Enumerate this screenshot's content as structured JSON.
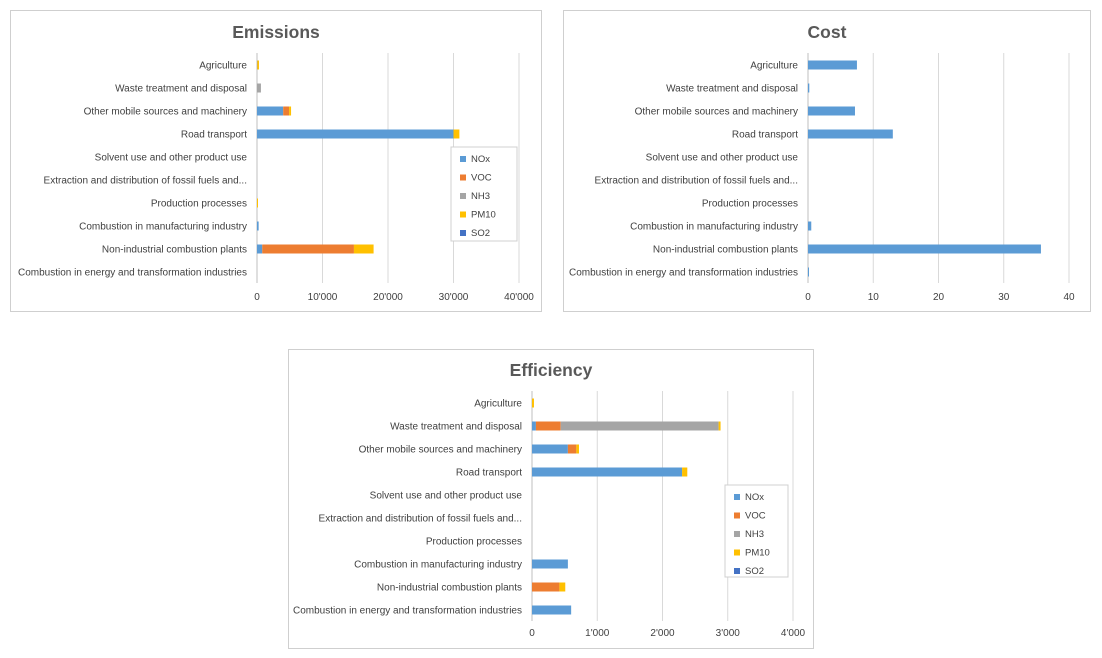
{
  "colors": {
    "NOx": "#5b9bd5",
    "VOC": "#ed7d31",
    "NH3": "#a5a5a5",
    "PM10": "#ffc000",
    "SO2": "#4472c4"
  },
  "chart_data": [
    {
      "type": "bar",
      "orientation": "horizontal",
      "stacked": true,
      "title": "Emissions",
      "categories": [
        "Agriculture",
        "Waste treatment and disposal",
        "Other mobile sources and machinery",
        "Road transport",
        "Solvent use and other product use",
        "Extraction and distribution of fossil fuels and...",
        "Production processes",
        "Combustion in manufacturing industry",
        "Non-industrial combustion plants",
        "Combustion in energy and transformation industries"
      ],
      "xlim": [
        0,
        40000
      ],
      "xticks": [
        0,
        10000,
        20000,
        30000,
        40000
      ],
      "xtick_labels": [
        "0",
        "10'000",
        "20'000",
        "30'000",
        "40'000"
      ],
      "grid": true,
      "legend_position": "right",
      "series": [
        {
          "name": "NOx",
          "values": [
            0,
            0,
            4000,
            30000,
            0,
            0,
            0,
            250,
            800,
            0
          ]
        },
        {
          "name": "VOC",
          "values": [
            0,
            0,
            900,
            0,
            0,
            0,
            0,
            0,
            14000,
            0
          ]
        },
        {
          "name": "NH3",
          "values": [
            50,
            600,
            0,
            0,
            0,
            0,
            0,
            0,
            0,
            0
          ]
        },
        {
          "name": "PM10",
          "values": [
            250,
            0,
            300,
            900,
            0,
            0,
            150,
            0,
            3000,
            0
          ]
        },
        {
          "name": "SO2",
          "values": [
            0,
            0,
            0,
            0,
            0,
            0,
            0,
            0,
            0,
            0
          ]
        }
      ]
    },
    {
      "type": "bar",
      "orientation": "horizontal",
      "stacked": true,
      "title": "Cost",
      "categories": [
        "Agriculture",
        "Waste treatment and disposal",
        "Other mobile sources and machinery",
        "Road transport",
        "Solvent use and other product use",
        "Extraction and distribution of fossil fuels and...",
        "Production processes",
        "Combustion in manufacturing industry",
        "Non-industrial combustion plants",
        "Combustion in energy and transformation industries"
      ],
      "xlim": [
        0,
        40
      ],
      "xticks": [
        0,
        10,
        20,
        30,
        40
      ],
      "xtick_labels": [
        "0",
        "10",
        "20",
        "30",
        "40"
      ],
      "grid": true,
      "legend_position": "none",
      "series": [
        {
          "name": "NOx",
          "values": [
            7.5,
            0.2,
            7.2,
            13,
            0,
            0,
            0,
            0.5,
            35.7,
            0.1
          ]
        }
      ]
    },
    {
      "type": "bar",
      "orientation": "horizontal",
      "stacked": true,
      "title": "Efficiency",
      "categories": [
        "Agriculture",
        "Waste treatment and disposal",
        "Other mobile sources and machinery",
        "Road transport",
        "Solvent use and other product use",
        "Extraction and distribution of fossil fuels and...",
        "Production processes",
        "Combustion in manufacturing industry",
        "Non-industrial combustion plants",
        "Combustion in energy and transformation industries"
      ],
      "xlim": [
        0,
        4000
      ],
      "xticks": [
        0,
        1000,
        2000,
        3000,
        4000
      ],
      "xtick_labels": [
        "0",
        "1'000",
        "2'000",
        "3'000",
        "4'000"
      ],
      "grid": true,
      "legend_position": "right",
      "series": [
        {
          "name": "NOx",
          "values": [
            0,
            60,
            550,
            2300,
            0,
            0,
            0,
            550,
            0,
            600
          ]
        },
        {
          "name": "VOC",
          "values": [
            0,
            380,
            130,
            0,
            0,
            0,
            0,
            0,
            420,
            0
          ]
        },
        {
          "name": "NH3",
          "values": [
            0,
            2420,
            0,
            0,
            0,
            0,
            0,
            0,
            0,
            0
          ]
        },
        {
          "name": "PM10",
          "values": [
            30,
            30,
            40,
            80,
            0,
            0,
            0,
            0,
            90,
            0
          ]
        },
        {
          "name": "SO2",
          "values": [
            0,
            0,
            0,
            0,
            0,
            0,
            0,
            0,
            0,
            0
          ]
        }
      ]
    }
  ]
}
